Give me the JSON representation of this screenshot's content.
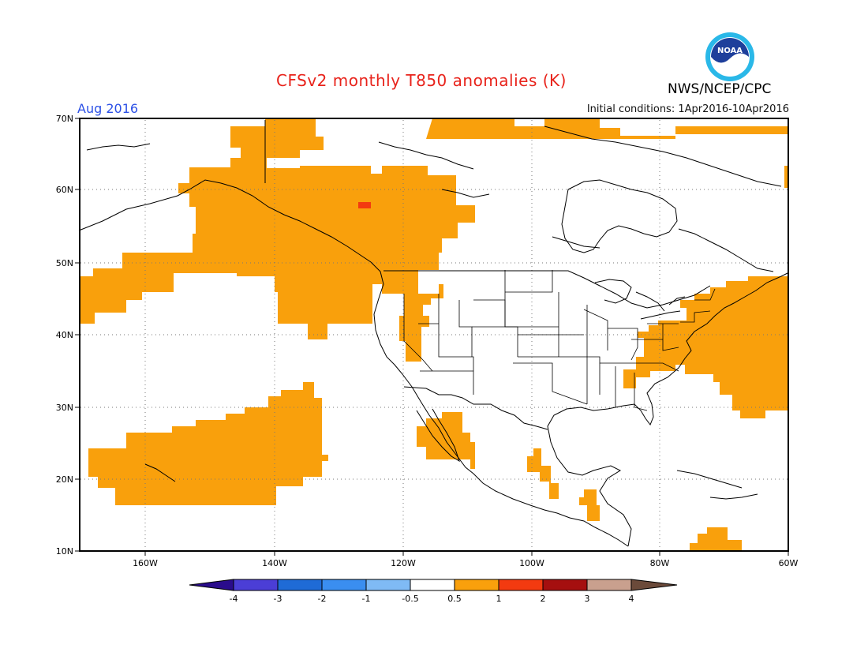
{
  "title": "CFSv2 monthly T850 anomalies (K)",
  "agency": "NWS/NCEP/CPC",
  "logo_text": "NOAA",
  "month_label": "Aug 2016",
  "initial_conditions": "Initial conditions: 1Apr2016-10Apr2016",
  "map": {
    "lat_labels": [
      "70N",
      "60N",
      "50N",
      "40N",
      "30N",
      "20N",
      "10N"
    ],
    "lon_labels": [
      "160W",
      "140W",
      "120W",
      "100W",
      "80W",
      "60W"
    ],
    "domain": {
      "lon_min": -171,
      "lon_max": -60,
      "lat_min": 10,
      "lat_max": 70
    },
    "colors": {
      "land_outline": "#000000",
      "positive_anomaly": "#f9a00c",
      "strong_anomaly": "#f33a10",
      "grid": "#888888"
    }
  },
  "colorbar": {
    "labels": [
      "-4",
      "-3",
      "-2",
      "-1",
      "-0.5",
      "0.5",
      "1",
      "2",
      "3",
      "4"
    ],
    "colors": [
      "#2a0c8c",
      "#4b3ed6",
      "#1f6bd6",
      "#3a8ef0",
      "#7fbaf5",
      "#ffffff",
      "#f9a00c",
      "#f33a10",
      "#a50f0f",
      "#c9a08e",
      "#6b4a3a"
    ]
  }
}
